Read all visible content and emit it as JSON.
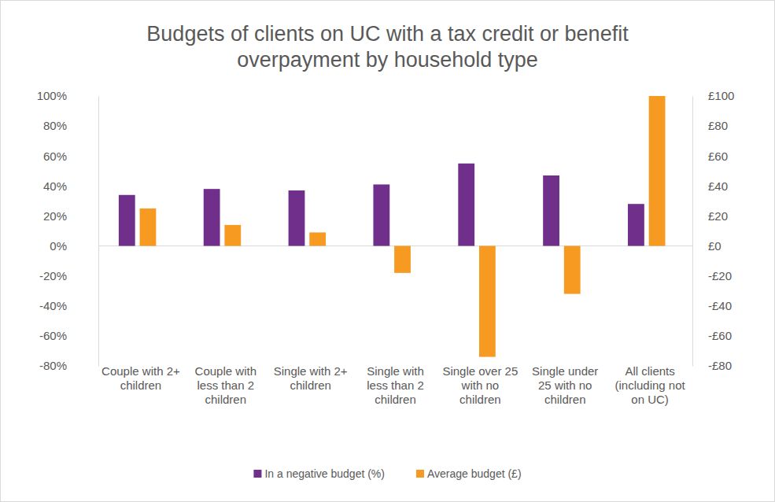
{
  "chart_data": {
    "type": "bar",
    "title": "Budgets of clients on UC with a tax credit or benefit overpayment by household type",
    "categories": [
      "Couple with 2+ children",
      "Couple with less than 2 children",
      "Single with 2+ children",
      "Single with less than 2 children",
      "Single over 25 with no children",
      "Single under 25 with no children",
      "All clients (including not on UC)"
    ],
    "series": [
      {
        "name": "In a negative budget (%)",
        "color": "#702f8a",
        "values": [
          34,
          38,
          37,
          41,
          55,
          47,
          28
        ]
      },
      {
        "name": "Average budget (£)",
        "color": "#f79a22",
        "axis": "y2",
        "values": [
          25,
          14,
          9,
          -18,
          -74,
          -32,
          100
        ]
      }
    ],
    "ylim": [
      -80,
      100
    ],
    "yticks": [
      {
        "value": -80,
        "label": "-80%"
      },
      {
        "value": -60,
        "label": "-60%"
      },
      {
        "value": -40,
        "label": "-40%"
      },
      {
        "value": -20,
        "label": "-20%"
      },
      {
        "value": 0,
        "label": "0%"
      },
      {
        "value": 20,
        "label": "20%"
      },
      {
        "value": 40,
        "label": "40%"
      },
      {
        "value": 60,
        "label": "60%"
      },
      {
        "value": 80,
        "label": "80%"
      },
      {
        "value": 100,
        "label": "100%"
      }
    ],
    "y2lim": [
      -80,
      100
    ],
    "y2ticks": [
      {
        "value": -80,
        "label": "-£80"
      },
      {
        "value": -60,
        "label": "-£60"
      },
      {
        "value": -40,
        "label": "-£40"
      },
      {
        "value": -20,
        "label": "-£20"
      },
      {
        "value": 0,
        "label": "£0"
      },
      {
        "value": 20,
        "label": "£20"
      },
      {
        "value": 40,
        "label": "£40"
      },
      {
        "value": 60,
        "label": "£60"
      },
      {
        "value": 80,
        "label": "£80"
      },
      {
        "value": 100,
        "label": "£100"
      }
    ],
    "grid": false,
    "legend": "bottom"
  }
}
